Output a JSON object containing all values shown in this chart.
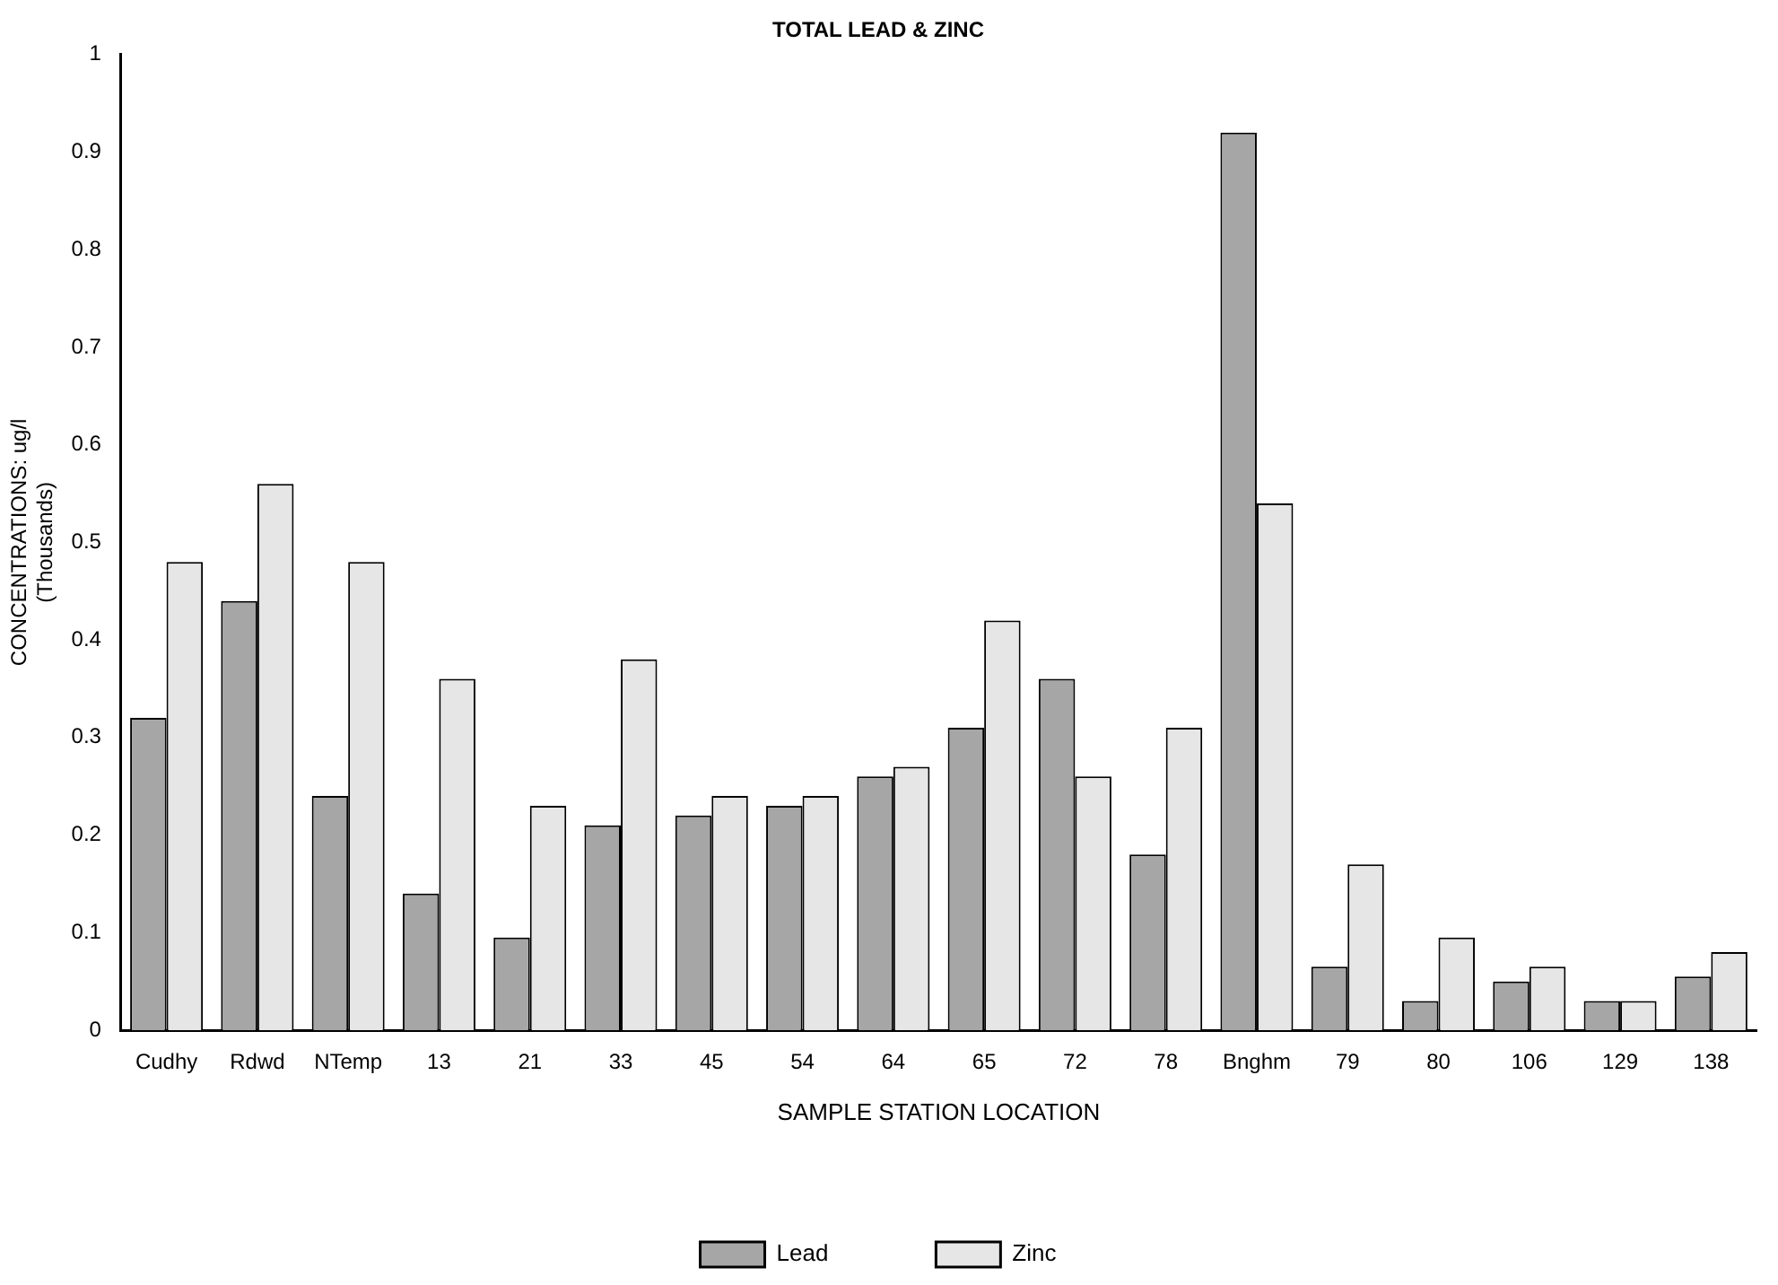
{
  "chart_data": {
    "type": "bar",
    "title": "TOTAL LEAD & ZINC",
    "xlabel": "SAMPLE STATION LOCATION",
    "ylabel": "CONCENTRATIONS: ug/l\n(Thousands)",
    "categories": [
      "Cudhy",
      "Rdwd",
      "NTemp",
      "13",
      "21",
      "33",
      "45",
      "54",
      "64",
      "65",
      "72",
      "78",
      "Bnghm",
      "79",
      "80",
      "106",
      "129",
      "138"
    ],
    "series": [
      {
        "name": "Lead",
        "color": "#a6a6a6",
        "values": [
          0.32,
          0.44,
          0.24,
          0.14,
          0.095,
          0.21,
          0.22,
          0.23,
          0.26,
          0.31,
          0.36,
          0.18,
          0.92,
          0.065,
          0.03,
          0.05,
          0.03,
          0.055
        ]
      },
      {
        "name": "Zinc",
        "color": "#e6e6e6",
        "values": [
          0.48,
          0.56,
          0.48,
          0.36,
          0.23,
          0.38,
          0.24,
          0.24,
          0.27,
          0.42,
          0.26,
          0.31,
          0.54,
          0.17,
          0.095,
          0.065,
          0.03,
          0.08
        ]
      }
    ],
    "ylim": [
      0,
      1
    ],
    "yticks": [
      0,
      0.1,
      0.2,
      0.3,
      0.4,
      0.5,
      0.6,
      0.7,
      0.8,
      0.9,
      1
    ],
    "grid": false,
    "legend": "bottom"
  }
}
